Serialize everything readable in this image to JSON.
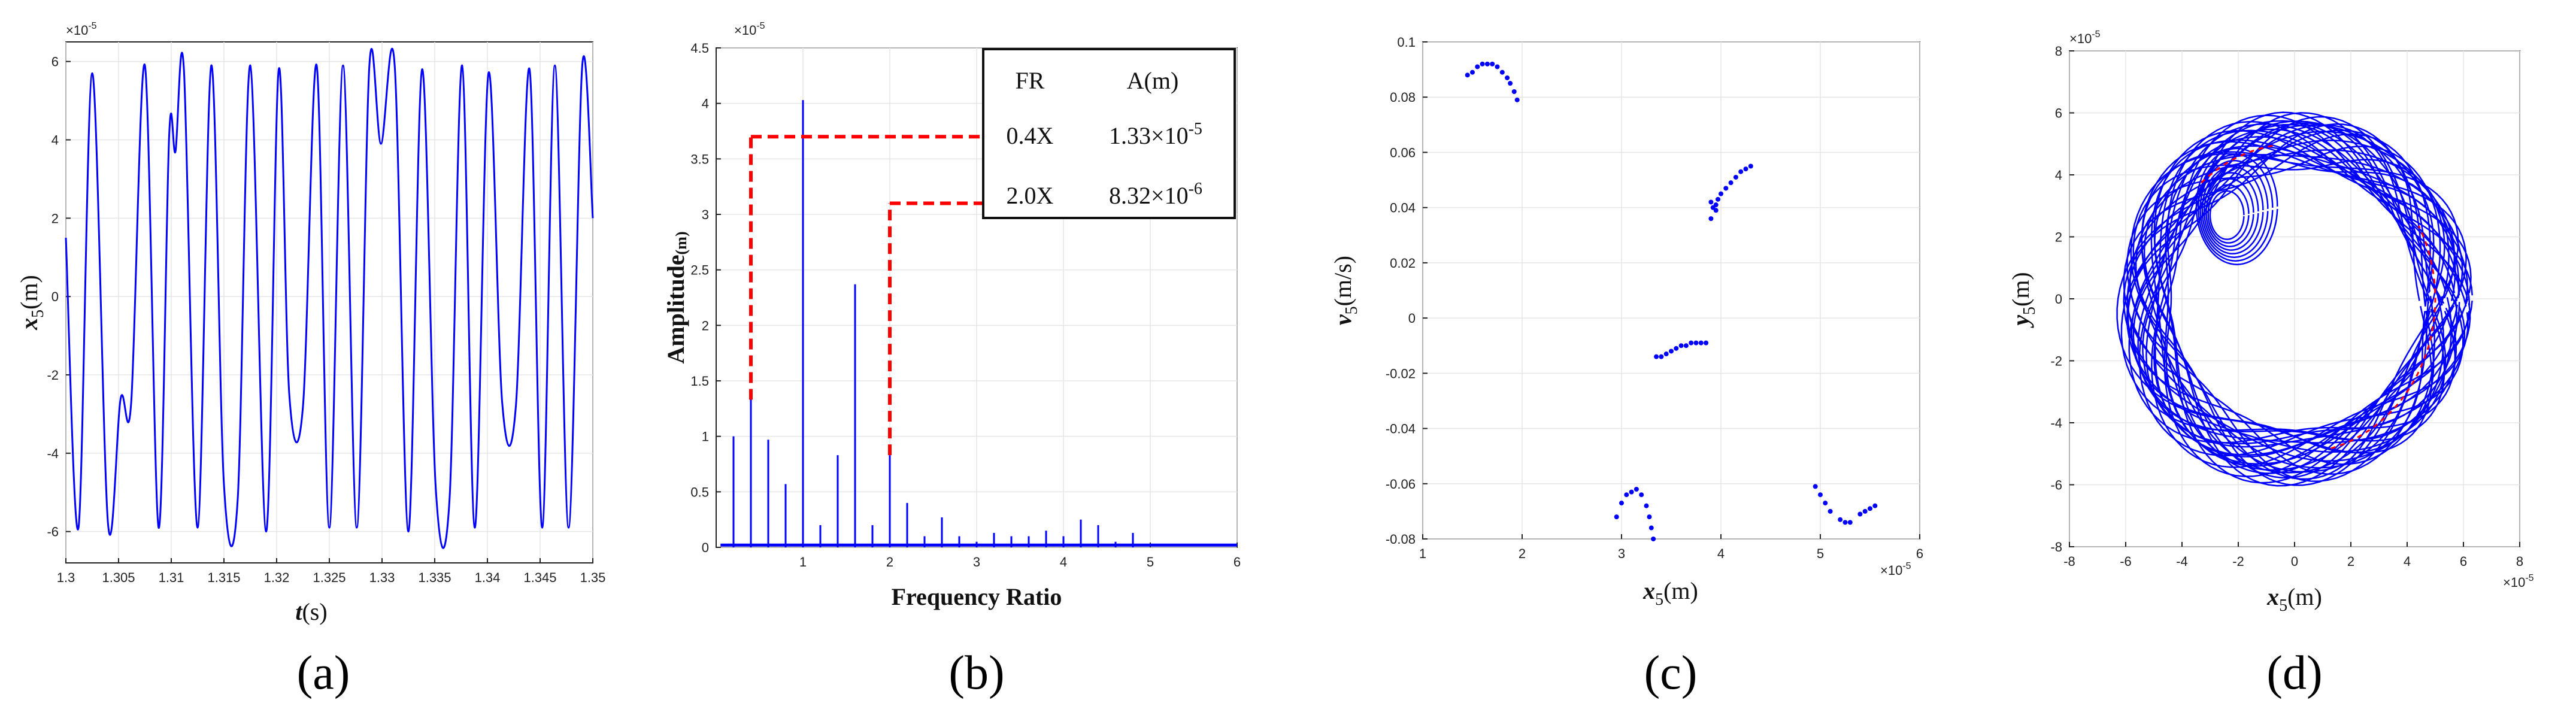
{
  "colors": {
    "series": "#0000ff",
    "highlight": "#ff0000",
    "axis": "#222222",
    "grid": "#e6e6e6"
  },
  "chart_data": [
    {
      "type": "line",
      "caption": "(a)",
      "xlabel_var": "t",
      "xlabel_unit": "(s)",
      "ylabel_var": "x",
      "ylabel_sub": "5",
      "ylabel_unit": "(m)",
      "y_exponent": "×10",
      "y_exponent_power": "-5",
      "xlim": [
        1.3,
        1.35
      ],
      "ylim": [
        -6.8,
        6.5
      ],
      "xticks": [
        "1.3",
        "1.305",
        "1.31",
        "1.315",
        "1.32",
        "1.325",
        "1.33",
        "1.335",
        "1.34",
        "1.345",
        "1.35"
      ],
      "yticks": [
        "-6",
        "-4",
        "-2",
        "0",
        "2",
        "4",
        "6"
      ],
      "grid": true,
      "series": [
        {
          "x": [
            1.3,
            1.3012,
            1.3025,
            1.304,
            1.3052,
            1.3062,
            1.3075,
            1.3088,
            1.3098,
            1.3104,
            1.3112,
            1.3125,
            1.3138,
            1.315,
            1.3163,
            1.3175,
            1.319,
            1.3202,
            1.3212,
            1.3225,
            1.3238,
            1.325,
            1.3263,
            1.3276,
            1.3288,
            1.3299,
            1.3312,
            1.3325,
            1.3338,
            1.3351,
            1.3364,
            1.3376,
            1.3388,
            1.3401,
            1.3414,
            1.3427,
            1.344,
            1.3452,
            1.3464,
            1.3477,
            1.349,
            1.35
          ],
          "values": [
            1.5,
            -5.9,
            5.7,
            -5.8,
            -2.6,
            -2.7,
            5.9,
            -5.9,
            4.1,
            3.7,
            5.8,
            -5.9,
            5.9,
            -4.8,
            -5.2,
            5.9,
            -6.0,
            5.8,
            -2.5,
            -2.8,
            5.9,
            -5.9,
            5.9,
            -5.9,
            5.9,
            3.9,
            5.9,
            -6.0,
            5.8,
            -4.9,
            -5.2,
            5.9,
            -5.9,
            5.7,
            -2.7,
            -2.8,
            5.8,
            -5.9,
            5.9,
            -5.9,
            5.9,
            2.0
          ]
        }
      ]
    },
    {
      "type": "bar",
      "caption": "(b)",
      "xlabel": "Frequency Ratio",
      "ylabel": "Amplitude",
      "ylabel_unit": "(m)",
      "y_exponent": "×10",
      "y_exponent_power": "-5",
      "xlim": [
        0,
        6
      ],
      "ylim": [
        0,
        4.5
      ],
      "xticks": [
        "1",
        "2",
        "3",
        "4",
        "5",
        "6"
      ],
      "yticks": [
        "0",
        "0.5",
        "1",
        "1.5",
        "2",
        "2.5",
        "3",
        "3.5",
        "4",
        "4.5"
      ],
      "grid": true,
      "x": [
        0.2,
        0.4,
        0.6,
        0.8,
        1.0,
        1.2,
        1.4,
        1.6,
        1.8,
        2.0,
        2.2,
        2.4,
        2.6,
        2.8,
        3.0,
        3.2,
        3.4,
        3.6,
        3.8,
        4.0,
        4.2,
        4.4,
        4.6,
        4.8
      ],
      "values": [
        1.0,
        1.33,
        0.97,
        0.57,
        4.03,
        0.2,
        0.83,
        2.37,
        0.2,
        0.83,
        0.4,
        0.1,
        0.27,
        0.1,
        0.05,
        0.13,
        0.1,
        0.1,
        0.15,
        0.1,
        0.25,
        0.2,
        0.05,
        0.13
      ],
      "highlights": [
        {
          "x": 0.4,
          "y": 3.7
        },
        {
          "x": 2.0,
          "y": 3.1
        }
      ],
      "table": {
        "headers": [
          "FR",
          "A(m)"
        ],
        "rows": [
          {
            "fr": "0.4X",
            "base": "1.33×10",
            "exp": "-5"
          },
          {
            "fr": "2.0X",
            "base": "8.32×10",
            "exp": "-6"
          }
        ]
      }
    },
    {
      "type": "scatter",
      "caption": "(c)",
      "xlabel_var": "x",
      "xlabel_sub": "5",
      "xlabel_unit": "(m)",
      "ylabel_var": "v",
      "ylabel_sub": "5",
      "ylabel_unit": "(m/s)",
      "x_exponent": "×10",
      "x_exponent_power": "-5",
      "xlim": [
        1,
        6
      ],
      "ylim": [
        -0.08,
        0.1
      ],
      "xticks": [
        "1",
        "2",
        "3",
        "4",
        "5",
        "6"
      ],
      "yticks": [
        "-0.08",
        "-0.06",
        "-0.04",
        "-0.02",
        "0",
        "0.02",
        "0.04",
        "0.06",
        "0.08",
        "0.1"
      ],
      "grid": true,
      "series": [
        {
          "x": [
            1.45,
            1.5,
            1.55,
            1.6,
            1.65,
            1.7,
            1.75,
            1.8,
            1.85,
            1.88,
            1.92,
            1.95,
            3.35,
            3.4,
            3.45,
            3.5,
            3.55,
            3.6,
            3.65,
            3.7,
            3.75,
            3.8,
            3.85,
            3.9,
            3.95,
            3.9,
            3.92,
            3.95,
            3.97,
            4.0,
            4.05,
            4.1,
            4.15,
            4.2,
            4.25,
            4.3,
            2.95,
            3.0,
            3.05,
            3.1,
            3.15,
            3.2,
            3.25,
            3.28,
            3.3,
            3.32,
            4.95,
            5.0,
            5.05,
            5.1,
            5.2,
            5.25,
            5.3,
            5.4,
            5.45,
            5.5,
            5.55
          ],
          "values": [
            0.088,
            0.089,
            0.091,
            0.092,
            0.092,
            0.092,
            0.091,
            0.089,
            0.087,
            0.085,
            0.082,
            0.079,
            -0.014,
            -0.014,
            -0.013,
            -0.012,
            -0.011,
            -0.01,
            -0.01,
            -0.009,
            -0.009,
            -0.009,
            -0.009,
            0.036,
            0.039,
            0.042,
            0.04,
            0.041,
            0.043,
            0.045,
            0.047,
            0.049,
            0.051,
            0.053,
            0.054,
            0.055,
            -0.072,
            -0.067,
            -0.064,
            -0.063,
            -0.062,
            -0.064,
            -0.068,
            -0.072,
            -0.076,
            -0.08,
            -0.061,
            -0.064,
            -0.067,
            -0.07,
            -0.073,
            -0.074,
            -0.074,
            -0.071,
            -0.07,
            -0.069,
            -0.068
          ]
        }
      ]
    },
    {
      "type": "line",
      "caption": "(d)",
      "xlabel_var": "x",
      "xlabel_sub": "5",
      "xlabel_unit": "(m)",
      "ylabel_var": "y",
      "ylabel_sub": "5",
      "ylabel_unit": "(m)",
      "x_exponent": "×10",
      "x_exponent_power": "-5",
      "y_exponent": "×10",
      "y_exponent_power": "-5",
      "xlim": [
        -8,
        8
      ],
      "ylim": [
        -8,
        8
      ],
      "xticks": [
        "-8",
        "-6",
        "-4",
        "-2",
        "0",
        "2",
        "4",
        "6",
        "8"
      ],
      "yticks": [
        "-8",
        "-6",
        "-4",
        "-2",
        "0",
        "2",
        "4",
        "6",
        "8"
      ],
      "grid": true,
      "orbit": {
        "radius_min": 4.6,
        "radius_max": 6.1,
        "loops": 30
      }
    }
  ]
}
